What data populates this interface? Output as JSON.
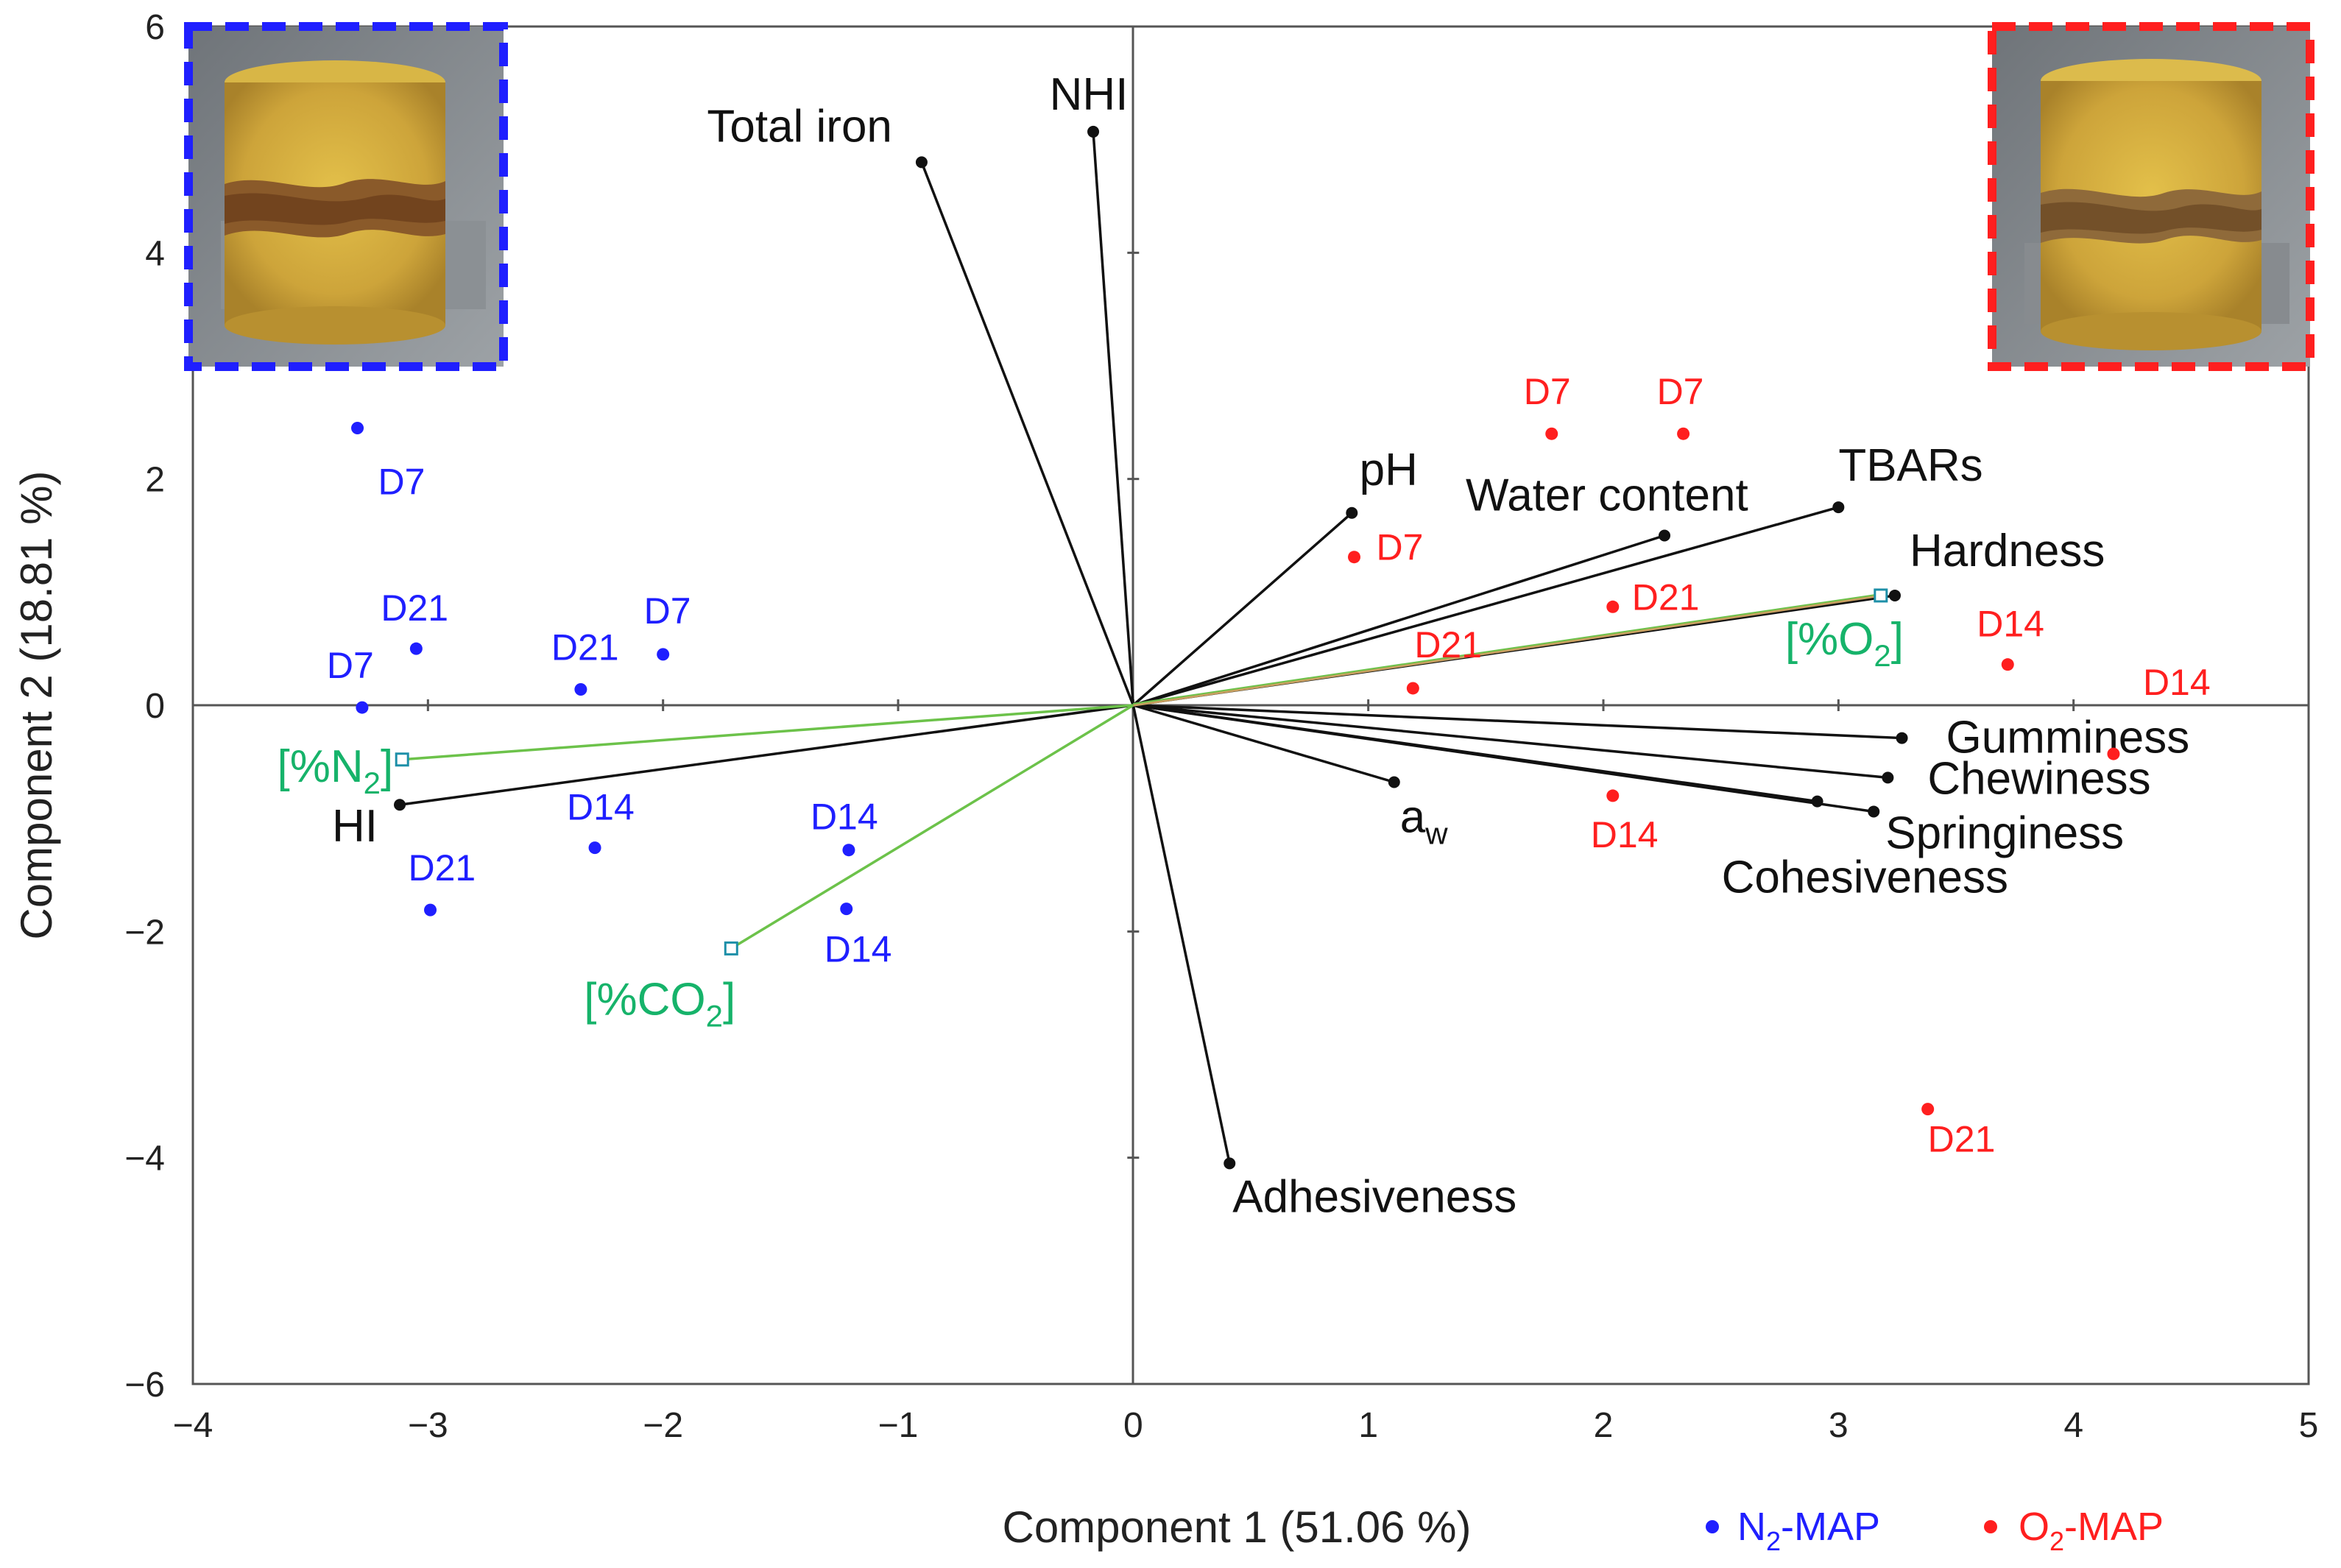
{
  "chart_data": {
    "type": "scatter",
    "title": "",
    "xlabel": "Component 1 (51.06 %)",
    "ylabel": "Component 2 (18.81 %)",
    "xlim": [
      -4,
      5
    ],
    "ylim": [
      -6,
      6
    ],
    "xticks": [
      "−4",
      "−3",
      "−2",
      "−1",
      "0",
      "1",
      "2",
      "3",
      "4",
      "5"
    ],
    "xtick_values": [
      -4,
      -3,
      -2,
      -1,
      0,
      1,
      2,
      3,
      4,
      5
    ],
    "yticks": [
      "6",
      "4",
      "2",
      "0",
      "−2",
      "−4",
      "−6"
    ],
    "ytick_values": [
      6,
      4,
      2,
      0,
      -2,
      -4,
      -6
    ],
    "grid": false,
    "legend_position": "bottom-right",
    "colors": {
      "n2": "#1f1fff",
      "o2": "#ff1f1f",
      "loading": "#111111",
      "supplementary": "#16b36a",
      "supplementary_line": "#6cc24a",
      "o2_line": "#c8a060"
    },
    "series": [
      {
        "name": "N2-MAP",
        "legend_main": "N",
        "legend_sub": "2",
        "legend_suffix": "-MAP",
        "color": "#1f1fff",
        "points": [
          {
            "label": "D7",
            "x": -3.3,
            "y": 2.45
          },
          {
            "label": "D21",
            "x": -3.05,
            "y": 0.5
          },
          {
            "label": "D7",
            "x": -3.28,
            "y": -0.02
          },
          {
            "label": "D21",
            "x": -2.35,
            "y": 0.14
          },
          {
            "label": "D7",
            "x": -2.0,
            "y": 0.45
          },
          {
            "label": "D21",
            "x": -2.99,
            "y": -1.81
          },
          {
            "label": "D14",
            "x": -2.29,
            "y": -1.26
          },
          {
            "label": "D14",
            "x": -1.21,
            "y": -1.28
          },
          {
            "label": "D14",
            "x": -1.22,
            "y": -1.8
          }
        ]
      },
      {
        "name": "O2-MAP",
        "legend_main": "O",
        "legend_sub": "2",
        "legend_suffix": "-MAP",
        "color": "#ff1f1f",
        "points": [
          {
            "label": "D7",
            "x": 1.78,
            "y": 2.4
          },
          {
            "label": "D7",
            "x": 2.34,
            "y": 2.4
          },
          {
            "label": "D7",
            "x": 0.94,
            "y": 1.31
          },
          {
            "label": "D21",
            "x": 2.04,
            "y": 0.87
          },
          {
            "label": "D21",
            "x": 1.19,
            "y": 0.15
          },
          {
            "label": "D14",
            "x": 3.72,
            "y": 0.36
          },
          {
            "label": "D14",
            "x": 4.17,
            "y": -0.43
          },
          {
            "label": "D14",
            "x": 2.04,
            "y": -0.8
          },
          {
            "label": "D21",
            "x": 3.38,
            "y": -3.57
          }
        ]
      }
    ],
    "loadings": [
      {
        "name": "Total iron",
        "x": -0.9,
        "y": 4.8
      },
      {
        "name": "NHI",
        "x": -0.17,
        "y": 5.07
      },
      {
        "name": "pH",
        "x": 0.93,
        "y": 1.7
      },
      {
        "name": "Water content",
        "x": 2.26,
        "y": 1.5
      },
      {
        "name": "TBARs",
        "x": 3.0,
        "y": 1.75
      },
      {
        "name": "Hardness",
        "x": 3.24,
        "y": 0.97
      },
      {
        "name": "Gumminess",
        "x": 3.27,
        "y": -0.29
      },
      {
        "name": "Chewiness",
        "x": 3.21,
        "y": -0.64
      },
      {
        "name": "Springiness",
        "x": 3.15,
        "y": -0.94
      },
      {
        "name": "Cohesiveness",
        "x": 2.91,
        "y": -0.85
      },
      {
        "name": "aw",
        "x": 1.11,
        "y": -0.68,
        "main": "a",
        "sub": "w"
      },
      {
        "name": "HI",
        "x": -3.12,
        "y": -0.88
      },
      {
        "name": "Adhesiveness",
        "x": 0.41,
        "y": -4.05
      }
    ],
    "supplementary": [
      {
        "name": "[%O2]",
        "x": 3.18,
        "y": 0.97,
        "main": "[%O",
        "sub": "2",
        "suffix": "]"
      },
      {
        "name": "[%N2]",
        "x": -3.11,
        "y": -0.48,
        "main": "[%N",
        "sub": "2",
        "suffix": "]"
      },
      {
        "name": "[%CO2]",
        "x": -1.71,
        "y": -2.15,
        "main": "[%CO",
        "sub": "2",
        "suffix": "]"
      }
    ]
  }
}
